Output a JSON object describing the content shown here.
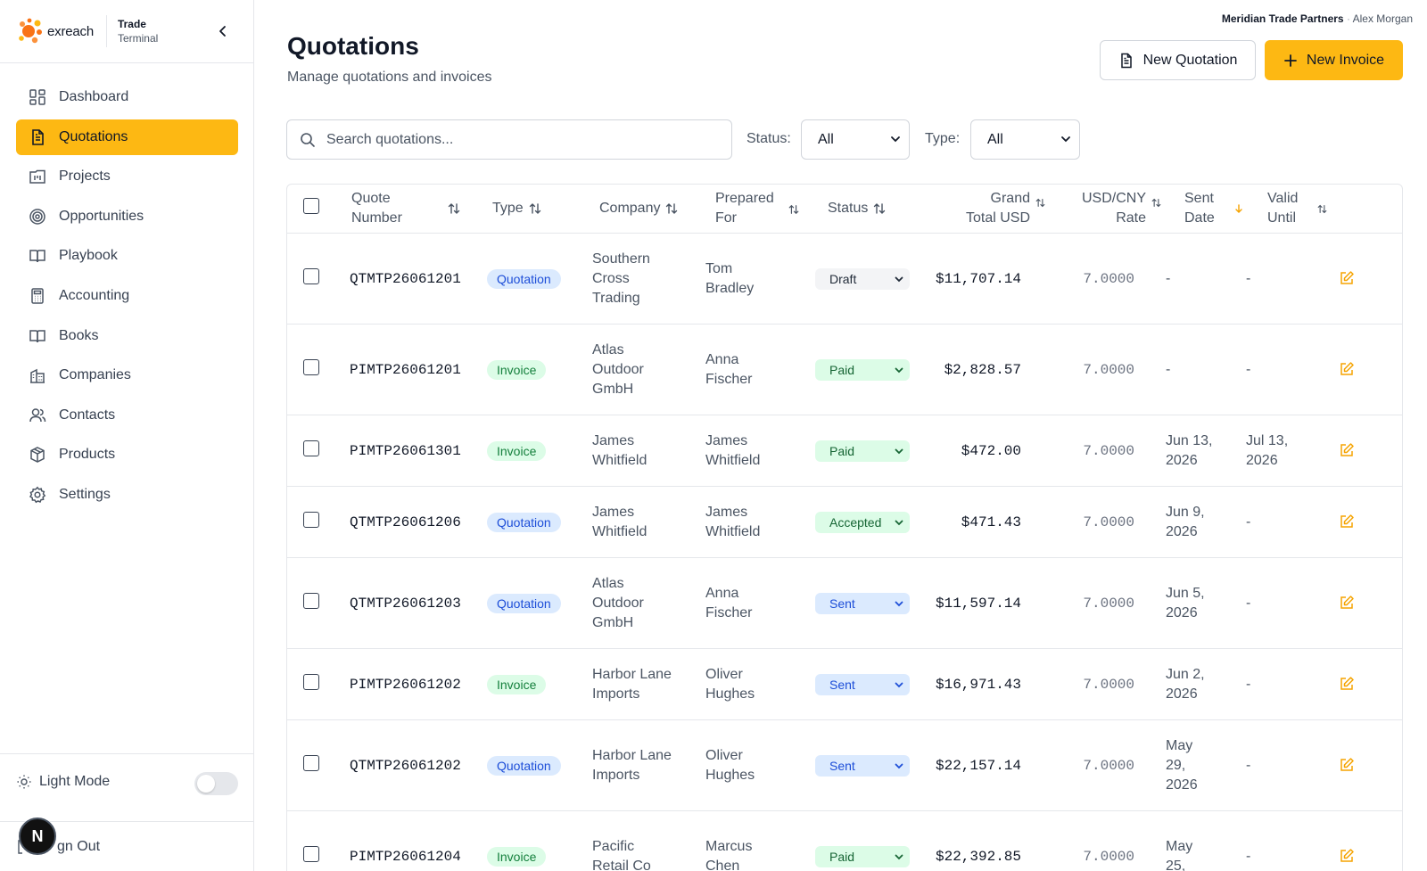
{
  "brand": {
    "logo_text": "exreach",
    "title_line1": "Trade",
    "title_line2": "Terminal"
  },
  "sidebar": {
    "items": [
      {
        "label": "Dashboard",
        "icon": "dashboard-icon",
        "active": false
      },
      {
        "label": "Quotations",
        "icon": "document-icon",
        "active": true
      },
      {
        "label": "Projects",
        "icon": "projects-icon",
        "active": false
      },
      {
        "label": "Opportunities",
        "icon": "target-icon",
        "active": false
      },
      {
        "label": "Playbook",
        "icon": "book-open-icon",
        "active": false
      },
      {
        "label": "Accounting",
        "icon": "calculator-icon",
        "active": false
      },
      {
        "label": "Books",
        "icon": "book-open-icon",
        "active": false
      },
      {
        "label": "Companies",
        "icon": "building-icon",
        "active": false
      },
      {
        "label": "Contacts",
        "icon": "users-icon",
        "active": false
      },
      {
        "label": "Products",
        "icon": "package-icon",
        "active": false
      },
      {
        "label": "Settings",
        "icon": "gear-icon",
        "active": false
      }
    ],
    "theme_label": "Light Mode",
    "signout_label": "Sign Out",
    "signout_visible_label": "gn Out",
    "overlay_avatar": "N"
  },
  "account": {
    "org": "Meridian Trade Partners",
    "separator": " · ",
    "user": "Alex Morgan"
  },
  "header": {
    "title": "Quotations",
    "subtitle": "Manage quotations and invoices",
    "new_quotation_label": "New Quotation",
    "new_invoice_label": "New Invoice"
  },
  "filters": {
    "search_placeholder": "Search quotations...",
    "status_label": "Status:",
    "status_value": "All",
    "type_label": "Type:",
    "type_value": "All"
  },
  "table": {
    "headers": {
      "quote_number": [
        "Quote",
        "Number"
      ],
      "type": "Type",
      "company": "Company",
      "prepared_for": [
        "Prepared",
        "For"
      ],
      "status": "Status",
      "grand_total": [
        "Grand",
        "Total USD"
      ],
      "rate": [
        "USD/CNY",
        "Rate"
      ],
      "sent_date": [
        "Sent",
        "Date"
      ],
      "valid_until": [
        "Valid",
        "Until"
      ]
    },
    "rows": [
      {
        "quote": "QTMTP26061201",
        "type": "Quotation",
        "company": [
          "Southern",
          "Cross",
          "Trading"
        ],
        "prepared": [
          "Tom",
          "Bradley"
        ],
        "status": "Draft",
        "total": "$11,707.14",
        "rate": "7.0000",
        "sent": [
          "-"
        ],
        "valid": [
          "-"
        ]
      },
      {
        "quote": "PIMTP26061201",
        "type": "Invoice",
        "company": [
          "Atlas",
          "Outdoor",
          "GmbH"
        ],
        "prepared": [
          "Anna",
          "Fischer"
        ],
        "status": "Paid",
        "total": "$2,828.57",
        "rate": "7.0000",
        "sent": [
          "-"
        ],
        "valid": [
          "-"
        ]
      },
      {
        "quote": "PIMTP26061301",
        "type": "Invoice",
        "company": [
          "James",
          "Whitfield"
        ],
        "prepared": [
          "James",
          "Whitfield"
        ],
        "status": "Paid",
        "total": "$472.00",
        "rate": "7.0000",
        "sent": [
          "Jun 13,",
          "2026"
        ],
        "valid": [
          "Jul 13,",
          "2026"
        ]
      },
      {
        "quote": "QTMTP26061206",
        "type": "Quotation",
        "company": [
          "James",
          "Whitfield"
        ],
        "prepared": [
          "James",
          "Whitfield"
        ],
        "status": "Accepted",
        "total": "$471.43",
        "rate": "7.0000",
        "sent": [
          "Jun 9,",
          "2026"
        ],
        "valid": [
          "-"
        ]
      },
      {
        "quote": "QTMTP26061203",
        "type": "Quotation",
        "company": [
          "Atlas",
          "Outdoor",
          "GmbH"
        ],
        "prepared": [
          "Anna",
          "Fischer"
        ],
        "status": "Sent",
        "total": "$11,597.14",
        "rate": "7.0000",
        "sent": [
          "Jun 5,",
          "2026"
        ],
        "valid": [
          "-"
        ]
      },
      {
        "quote": "PIMTP26061202",
        "type": "Invoice",
        "company": [
          "Harbor Lane",
          "Imports"
        ],
        "prepared": [
          "Oliver",
          "Hughes"
        ],
        "status": "Sent",
        "total": "$16,971.43",
        "rate": "7.0000",
        "sent": [
          "Jun 2,",
          "2026"
        ],
        "valid": [
          "-"
        ]
      },
      {
        "quote": "QTMTP26061202",
        "type": "Quotation",
        "company": [
          "Harbor Lane",
          "Imports"
        ],
        "prepared": [
          "Oliver",
          "Hughes"
        ],
        "status": "Sent",
        "total": "$22,157.14",
        "rate": "7.0000",
        "sent": [
          "May",
          "29,",
          "2026"
        ],
        "valid": [
          "-"
        ]
      },
      {
        "quote": "PIMTP26061204",
        "type": "Invoice",
        "company": [
          "Pacific",
          "Retail Co"
        ],
        "prepared": [
          "Marcus",
          "Chen"
        ],
        "status": "Paid",
        "total": "$22,392.85",
        "rate": "7.0000",
        "sent": [
          "May",
          "25,"
        ],
        "valid": [
          "-"
        ]
      }
    ]
  },
  "colors": {
    "accent": "#fdb813",
    "quotation_badge_bg": "#dbeafe",
    "invoice_badge_bg": "#dcfce7",
    "edit_icon": "#f5a300"
  }
}
